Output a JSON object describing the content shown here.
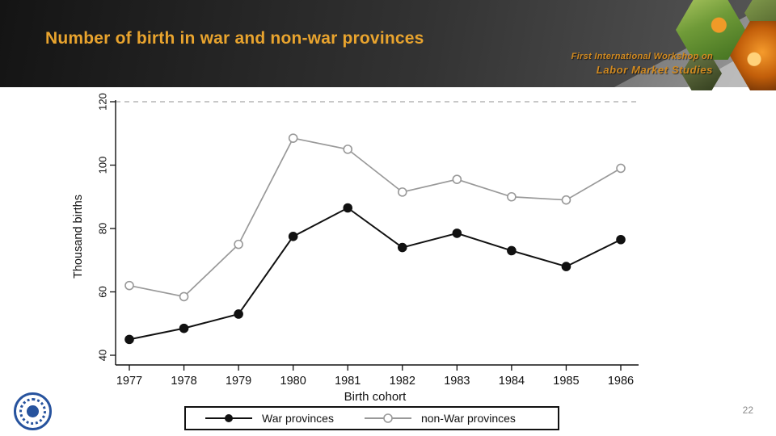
{
  "header": {
    "title": "Number of birth in war and non-war provinces",
    "workshop_line1": "First International Workshop on",
    "workshop_line2": "Labor Market Studies"
  },
  "chart_data": {
    "type": "line",
    "x": [
      1977,
      1978,
      1979,
      1980,
      1981,
      1982,
      1983,
      1984,
      1985,
      1986
    ],
    "series": [
      {
        "name": "War provinces",
        "color": "#111111",
        "marker": "filled",
        "values": [
          45,
          48.5,
          53,
          77.5,
          86.5,
          74,
          78.5,
          73,
          68,
          76.5
        ]
      },
      {
        "name": "non-War provinces",
        "color": "#999999",
        "marker": "open",
        "values": [
          62,
          58.5,
          75,
          108.5,
          105,
          91.5,
          95.5,
          90,
          89,
          99
        ]
      }
    ],
    "xlabel": "Birth cohort",
    "ylabel": "Thousand births",
    "yticks": [
      40,
      60,
      80,
      100,
      120
    ],
    "ylim": [
      36,
      122
    ],
    "grid": "top-dashed",
    "legend_position": "bottom-box"
  },
  "footer": {
    "page_number": "22"
  },
  "colors": {
    "title_accent": "#e9a42e",
    "workshop_accent": "#d28a20",
    "banner_dark": "#2e2e2e",
    "war_series": "#111111",
    "nonwar_series": "#999999",
    "logo_blue": "#27539e"
  }
}
